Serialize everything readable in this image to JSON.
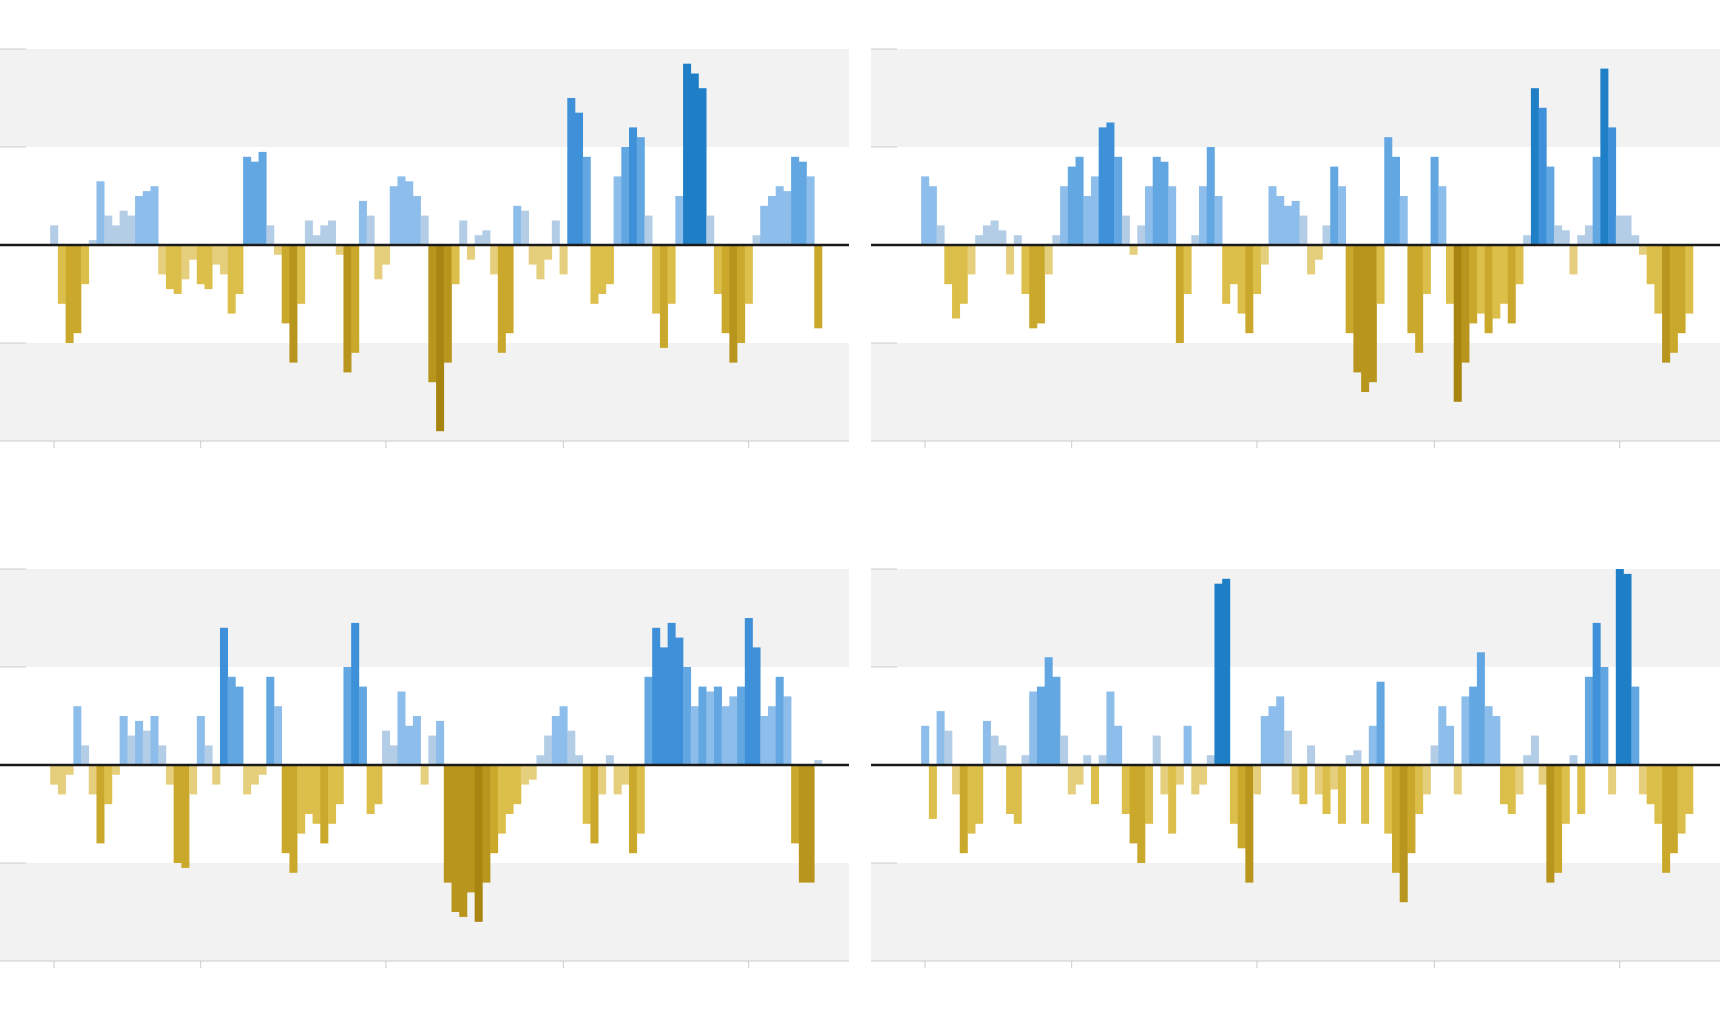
{
  "chart_data": [
    {
      "type": "bar",
      "x": [
        0,
        1,
        2,
        3,
        4,
        5,
        6,
        7,
        8,
        9,
        10,
        11,
        12,
        13,
        14,
        15,
        16,
        17,
        18,
        19,
        20,
        21,
        22,
        23,
        24,
        25,
        26,
        27,
        28,
        29,
        30,
        31,
        32,
        33,
        34,
        35,
        36,
        37,
        38,
        39,
        40,
        41,
        42,
        43,
        44,
        45,
        46,
        47,
        48,
        49,
        50,
        51,
        52,
        53,
        54,
        55,
        56,
        57,
        58,
        59,
        60,
        61,
        62,
        63,
        64,
        65,
        66,
        67,
        68,
        69,
        70,
        71,
        72,
        73,
        74,
        75,
        76,
        77,
        78,
        79,
        80,
        81,
        82,
        83,
        84,
        85,
        86,
        87,
        88,
        89,
        90,
        91,
        92,
        93,
        94,
        95,
        96,
        97,
        98,
        99
      ],
      "values": [
        0.2,
        -0.6,
        -1.0,
        -0.9,
        -0.4,
        0.05,
        0.65,
        0.3,
        0.2,
        0.35,
        0.3,
        0.5,
        0.55,
        0.6,
        -0.3,
        -0.45,
        -0.5,
        -0.35,
        -0.15,
        -0.4,
        -0.45,
        -0.2,
        -0.3,
        -0.7,
        -0.5,
        0.9,
        0.85,
        0.95,
        0.2,
        -0.1,
        -0.8,
        -1.2,
        -0.6,
        0.25,
        0.1,
        0.2,
        0.25,
        -0.1,
        -1.3,
        -1.1,
        0.45,
        0.3,
        -0.35,
        -0.2,
        0.6,
        0.7,
        0.65,
        0.5,
        0.3,
        -1.4,
        -1.9,
        -1.2,
        -0.4,
        0.25,
        -0.15,
        0.1,
        0.15,
        -0.3,
        -1.1,
        -0.9,
        0.4,
        0.35,
        -0.2,
        -0.35,
        -0.15,
        0.25,
        -0.3,
        1.5,
        1.35,
        0.9,
        -0.6,
        -0.5,
        -0.4,
        0.7,
        1.0,
        1.2,
        1.1,
        0.3,
        -0.7,
        -1.05,
        -0.6,
        0.5,
        1.85,
        1.75,
        1.6,
        0.3,
        -0.5,
        -0.9,
        -1.2,
        -1.0,
        -0.6,
        0.1,
        0.4,
        0.5,
        0.6,
        0.55,
        0.9,
        0.85,
        0.7,
        -0.85
      ],
      "xlim": [
        -7,
        103
      ],
      "xticks": [
        0,
        19,
        43,
        66,
        90
      ],
      "ylim": [
        -2,
        2
      ],
      "yticks": [
        -2,
        -1,
        0,
        1,
        2
      ],
      "colors": {
        "positive": [
          "#b4cde6",
          "#8dbdea",
          "#62a7e2",
          "#3e91d8",
          "#1f7fc6"
        ],
        "negative": [
          "#e6cf7c",
          "#dcbf4a",
          "#caa82c",
          "#b8951c",
          "#a88510"
        ],
        "band": "#f2f2f2"
      }
    },
    {
      "type": "bar",
      "x": [
        0,
        1,
        2,
        3,
        4,
        5,
        6,
        7,
        8,
        9,
        10,
        11,
        12,
        13,
        14,
        15,
        16,
        17,
        18,
        19,
        20,
        21,
        22,
        23,
        24,
        25,
        26,
        27,
        28,
        29,
        30,
        31,
        32,
        33,
        34,
        35,
        36,
        37,
        38,
        39,
        40,
        41,
        42,
        43,
        44,
        45,
        46,
        47,
        48,
        49,
        50,
        51,
        52,
        53,
        54,
        55,
        56,
        57,
        58,
        59,
        60,
        61,
        62,
        63,
        64,
        65,
        66,
        67,
        68,
        69,
        70,
        71,
        72,
        73,
        74,
        75,
        76,
        77,
        78,
        79,
        80,
        81,
        82,
        83,
        84,
        85,
        86,
        87,
        88,
        89,
        90,
        91,
        92,
        93,
        94,
        95,
        96,
        97,
        98,
        99
      ],
      "values": [
        0.7,
        0.6,
        0.2,
        -0.4,
        -0.75,
        -0.6,
        -0.3,
        0.1,
        0.2,
        0.25,
        0.15,
        -0.3,
        0.1,
        -0.5,
        -0.85,
        -0.8,
        -0.3,
        0.1,
        0.6,
        0.8,
        0.9,
        0.5,
        0.7,
        1.2,
        1.25,
        0.9,
        0.3,
        -0.1,
        0.2,
        0.6,
        0.9,
        0.85,
        0.6,
        -1.0,
        -0.5,
        0.1,
        0.6,
        1.0,
        0.5,
        -0.6,
        -0.4,
        -0.7,
        -0.9,
        -0.5,
        -0.2,
        0.6,
        0.5,
        0.4,
        0.45,
        0.3,
        -0.3,
        -0.15,
        0.2,
        0.8,
        0.6,
        -0.9,
        -1.3,
        -1.5,
        -1.4,
        -0.6,
        1.1,
        0.9,
        0.5,
        -0.9,
        -1.1,
        -0.5,
        0.9,
        0.6,
        -0.6,
        -1.6,
        -1.2,
        -0.8,
        -0.7,
        -0.9,
        -0.75,
        -0.6,
        -0.8,
        -0.4,
        0.1,
        1.6,
        1.4,
        0.8,
        0.2,
        0.15,
        -0.3,
        0.1,
        0.2,
        0.9,
        1.8,
        1.2,
        0.3,
        0.3,
        0.1,
        -0.1,
        -0.4,
        -0.7,
        -1.2,
        -1.1,
        -0.9,
        -0.7
      ],
      "xlim": [
        -7,
        103
      ],
      "xticks": [
        0,
        19,
        43,
        66,
        90
      ],
      "ylim": [
        -2,
        2
      ],
      "yticks": [
        -2,
        -1,
        0,
        1,
        2
      ],
      "colors": {
        "positive": [
          "#b4cde6",
          "#8dbdea",
          "#62a7e2",
          "#3e91d8",
          "#1f7fc6"
        ],
        "negative": [
          "#e6cf7c",
          "#dcbf4a",
          "#caa82c",
          "#b8951c",
          "#a88510"
        ],
        "band": "#f2f2f2"
      }
    },
    {
      "type": "bar",
      "x": [
        0,
        1,
        2,
        3,
        4,
        5,
        6,
        7,
        8,
        9,
        10,
        11,
        12,
        13,
        14,
        15,
        16,
        17,
        18,
        19,
        20,
        21,
        22,
        23,
        24,
        25,
        26,
        27,
        28,
        29,
        30,
        31,
        32,
        33,
        34,
        35,
        36,
        37,
        38,
        39,
        40,
        41,
        42,
        43,
        44,
        45,
        46,
        47,
        48,
        49,
        50,
        51,
        52,
        53,
        54,
        55,
        56,
        57,
        58,
        59,
        60,
        61,
        62,
        63,
        64,
        65,
        66,
        67,
        68,
        69,
        70,
        71,
        72,
        73,
        74,
        75,
        76,
        77,
        78,
        79,
        80,
        81,
        82,
        83,
        84,
        85,
        86,
        87,
        88,
        89,
        90,
        91,
        92,
        93,
        94,
        95,
        96,
        97,
        98,
        99
      ],
      "values": [
        -0.2,
        -0.3,
        -0.1,
        0.6,
        0.2,
        -0.3,
        -0.8,
        -0.4,
        -0.1,
        0.5,
        0.3,
        0.45,
        0.35,
        0.5,
        0.2,
        -0.2,
        -1.0,
        -1.05,
        -0.3,
        0.5,
        0.2,
        -0.2,
        1.4,
        0.9,
        0.8,
        -0.3,
        -0.2,
        -0.1,
        0.9,
        0.6,
        -0.9,
        -1.1,
        -0.7,
        -0.5,
        -0.6,
        -0.8,
        -0.6,
        -0.4,
        1.0,
        1.45,
        0.8,
        -0.5,
        -0.4,
        0.35,
        0.2,
        0.75,
        0.4,
        0.5,
        -0.2,
        0.3,
        0.45,
        -1.2,
        -1.5,
        -1.55,
        -1.3,
        -1.6,
        -1.2,
        -0.9,
        -0.7,
        -0.5,
        -0.4,
        -0.2,
        -0.15,
        0.1,
        0.3,
        0.5,
        0.6,
        0.35,
        0.1,
        -0.6,
        -0.8,
        -0.3,
        0.1,
        -0.3,
        -0.2,
        -0.9,
        -0.7,
        0.9,
        1.4,
        1.2,
        1.45,
        1.3,
        1.0,
        0.6,
        0.8,
        0.75,
        0.8,
        0.6,
        0.7,
        0.8,
        1.5,
        1.2,
        0.5,
        0.6,
        0.9,
        0.7,
        -0.8,
        -1.2,
        -1.2,
        0.05
      ],
      "xlim": [
        -7,
        103
      ],
      "xticks": [
        0,
        19,
        43,
        66,
        90
      ],
      "ylim": [
        -2,
        2
      ],
      "yticks": [
        -2,
        -1,
        0,
        1,
        2
      ],
      "colors": {
        "positive": [
          "#b4cde6",
          "#8dbdea",
          "#62a7e2",
          "#3e91d8",
          "#1f7fc6"
        ],
        "negative": [
          "#e6cf7c",
          "#dcbf4a",
          "#caa82c",
          "#b8951c",
          "#a88510"
        ],
        "band": "#f2f2f2"
      }
    },
    {
      "type": "bar",
      "x": [
        0,
        1,
        2,
        3,
        4,
        5,
        6,
        7,
        8,
        9,
        10,
        11,
        12,
        13,
        14,
        15,
        16,
        17,
        18,
        19,
        20,
        21,
        22,
        23,
        24,
        25,
        26,
        27,
        28,
        29,
        30,
        31,
        32,
        33,
        34,
        35,
        36,
        37,
        38,
        39,
        40,
        41,
        42,
        43,
        44,
        45,
        46,
        47,
        48,
        49,
        50,
        51,
        52,
        53,
        54,
        55,
        56,
        57,
        58,
        59,
        60,
        61,
        62,
        63,
        64,
        65,
        66,
        67,
        68,
        69,
        70,
        71,
        72,
        73,
        74,
        75,
        76,
        77,
        78,
        79,
        80,
        81,
        82,
        83,
        84,
        85,
        86,
        87,
        88,
        89,
        90,
        91,
        92,
        93,
        94,
        95,
        96,
        97,
        98,
        99
      ],
      "values": [
        0.4,
        -0.55,
        0.55,
        0.35,
        -0.3,
        -0.9,
        -0.7,
        -0.6,
        0.45,
        0.3,
        0.2,
        -0.5,
        -0.6,
        0.1,
        0.75,
        0.8,
        1.1,
        0.9,
        0.3,
        -0.3,
        -0.2,
        0.1,
        -0.4,
        0.1,
        0.75,
        0.4,
        -0.5,
        -0.8,
        -1.0,
        -0.6,
        0.3,
        -0.3,
        -0.7,
        -0.2,
        0.4,
        -0.3,
        -0.2,
        0.1,
        1.85,
        1.9,
        -0.6,
        -0.85,
        -1.2,
        -0.3,
        0.5,
        0.6,
        0.7,
        0.35,
        -0.3,
        -0.4,
        0.2,
        -0.3,
        -0.5,
        -0.25,
        -0.6,
        0.1,
        0.15,
        -0.6,
        0.4,
        0.85,
        -0.7,
        -1.1,
        -1.4,
        -0.9,
        -0.5,
        -0.3,
        0.2,
        0.6,
        0.4,
        -0.3,
        0.7,
        0.8,
        1.15,
        0.6,
        0.5,
        -0.4,
        -0.5,
        -0.3,
        0.1,
        0.3,
        -0.2,
        -1.2,
        -1.1,
        -0.6,
        0.1,
        -0.5,
        0.9,
        1.45,
        1.0,
        -0.3,
        2.0,
        1.95,
        0.8,
        -0.3,
        -0.4,
        -0.6,
        -1.1,
        -0.9,
        -0.7,
        -0.5
      ],
      "xlim": [
        -7,
        103
      ],
      "xticks": [
        0,
        19,
        43,
        66,
        90
      ],
      "ylim": [
        -2,
        2
      ],
      "yticks": [
        -2,
        -1,
        0,
        1,
        2
      ],
      "colors": {
        "positive": [
          "#b4cde6",
          "#8dbdea",
          "#62a7e2",
          "#3e91d8",
          "#1f7fc6"
        ],
        "negative": [
          "#e6cf7c",
          "#dcbf4a",
          "#caa82c",
          "#b8951c",
          "#a88510"
        ],
        "band": "#f2f2f2"
      }
    }
  ]
}
